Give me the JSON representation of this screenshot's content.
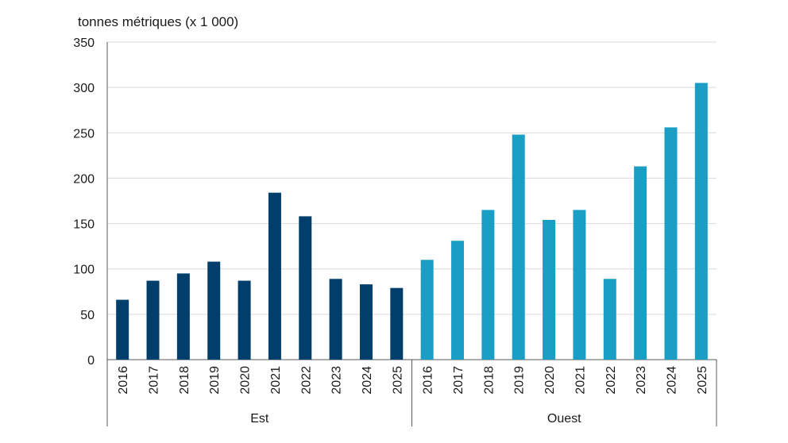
{
  "chart_data": {
    "type": "bar",
    "ylabel": "tonnes métriques (x 1 000)",
    "ylim": [
      0,
      350
    ],
    "yticks": [
      0,
      50,
      100,
      150,
      200,
      250,
      300,
      350
    ],
    "grid": true,
    "groups": [
      {
        "name": "Est",
        "color": "#003f6b",
        "categories": [
          "2016",
          "2017",
          "2018",
          "2019",
          "2020",
          "2021",
          "2022",
          "2023",
          "2024",
          "2025"
        ],
        "values": [
          66,
          87,
          95,
          108,
          87,
          184,
          158,
          89,
          83,
          79
        ]
      },
      {
        "name": "Ouest",
        "color": "#1b9ec6",
        "categories": [
          "2016",
          "2017",
          "2018",
          "2019",
          "2020",
          "2021",
          "2022",
          "2023",
          "2024",
          "2025"
        ],
        "values": [
          110,
          131,
          165,
          248,
          154,
          165,
          89,
          213,
          256,
          305
        ]
      }
    ]
  }
}
